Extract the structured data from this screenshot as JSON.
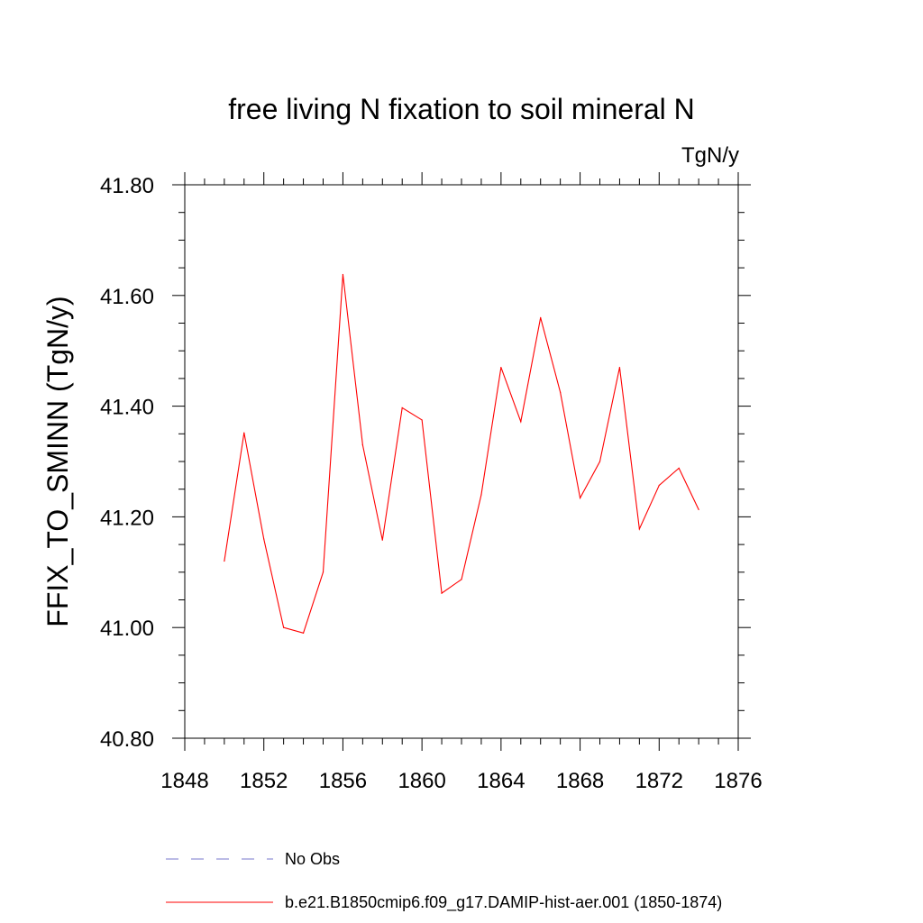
{
  "chart_data": {
    "type": "line",
    "title": "free living N fixation to soil mineral N",
    "units": "TgN/y",
    "xlabel": "",
    "ylabel": "FFIX_TO_SMINN  (TgN/y)",
    "xlim": [
      1848,
      1876
    ],
    "ylim": [
      40.8,
      41.8
    ],
    "xticks": [
      1848,
      1852,
      1856,
      1860,
      1864,
      1868,
      1872,
      1876
    ],
    "xtick_labels": [
      "1848",
      "1852",
      "1856",
      "1860",
      "1864",
      "1868",
      "1872",
      "1876"
    ],
    "yticks": [
      40.8,
      41.0,
      41.2,
      41.4,
      41.6,
      41.8
    ],
    "ytick_labels": [
      "40.80",
      "41.00",
      "41.20",
      "41.40",
      "41.60",
      "41.80"
    ],
    "grid": false,
    "legend_position": "bottom",
    "series": [
      {
        "name": "b.e21.B1850cmip6.f09_g17.DAMIP-hist-aer.001 (1850-1874)",
        "color": "#ff0000",
        "dash": "solid",
        "x": [
          1850,
          1851,
          1852,
          1853,
          1854,
          1855,
          1856,
          1857,
          1858,
          1859,
          1860,
          1861,
          1862,
          1863,
          1864,
          1865,
          1866,
          1867,
          1868,
          1869,
          1870,
          1871,
          1872,
          1873,
          1874
        ],
        "values": [
          41.12,
          41.352,
          41.16,
          41.0,
          40.99,
          41.1,
          41.638,
          41.33,
          41.158,
          41.397,
          41.375,
          41.062,
          41.087,
          41.24,
          41.47,
          41.372,
          41.56,
          41.425,
          41.234,
          41.3,
          41.47,
          41.178,
          41.257,
          41.288,
          41.213
        ]
      }
    ],
    "legend": [
      {
        "label": "No Obs",
        "color": "#7777cc",
        "dash": "dashed"
      },
      {
        "label": "b.e21.B1850cmip6.f09_g17.DAMIP-hist-aer.001 (1850-1874)",
        "color": "#ff0000",
        "dash": "solid"
      }
    ]
  }
}
